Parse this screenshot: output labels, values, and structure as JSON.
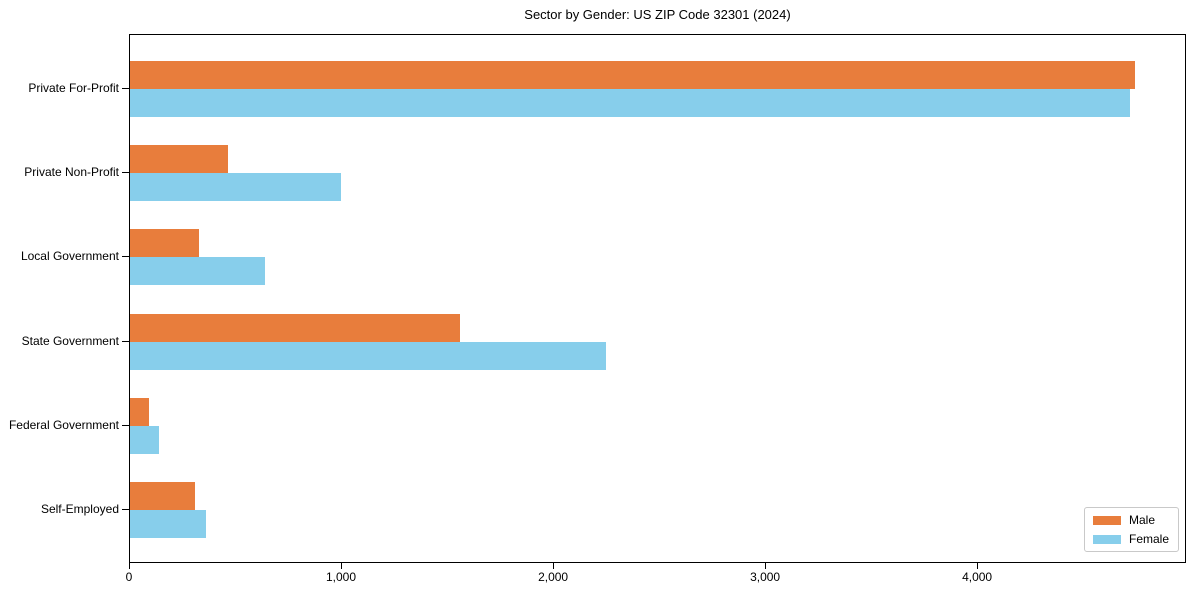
{
  "chart_data": {
    "type": "bar",
    "orientation": "horizontal",
    "title": "Sector by Gender: US ZIP Code 32301 (2024)",
    "categories": [
      "Private For-Profit",
      "Private Non-Profit",
      "Local Government",
      "State Government",
      "Federal Government",
      "Self-Employed"
    ],
    "series": [
      {
        "name": "Male",
        "color": "#e87d3c",
        "values": [
          4740,
          460,
          325,
          1555,
          90,
          305
        ]
      },
      {
        "name": "Female",
        "color": "#87ceeb",
        "values": [
          4715,
          995,
          635,
          2245,
          135,
          360
        ]
      }
    ],
    "xlabel": "",
    "ylabel": "",
    "xlim": [
      0,
      4985
    ],
    "xticks": {
      "values": [
        0,
        1000,
        2000,
        3000,
        4000
      ],
      "labels": [
        "0",
        "1,000",
        "2,000",
        "3,000",
        "4,000"
      ]
    },
    "legend": {
      "position": "lower right",
      "entries": [
        "Male",
        "Female"
      ]
    },
    "grid": false
  }
}
